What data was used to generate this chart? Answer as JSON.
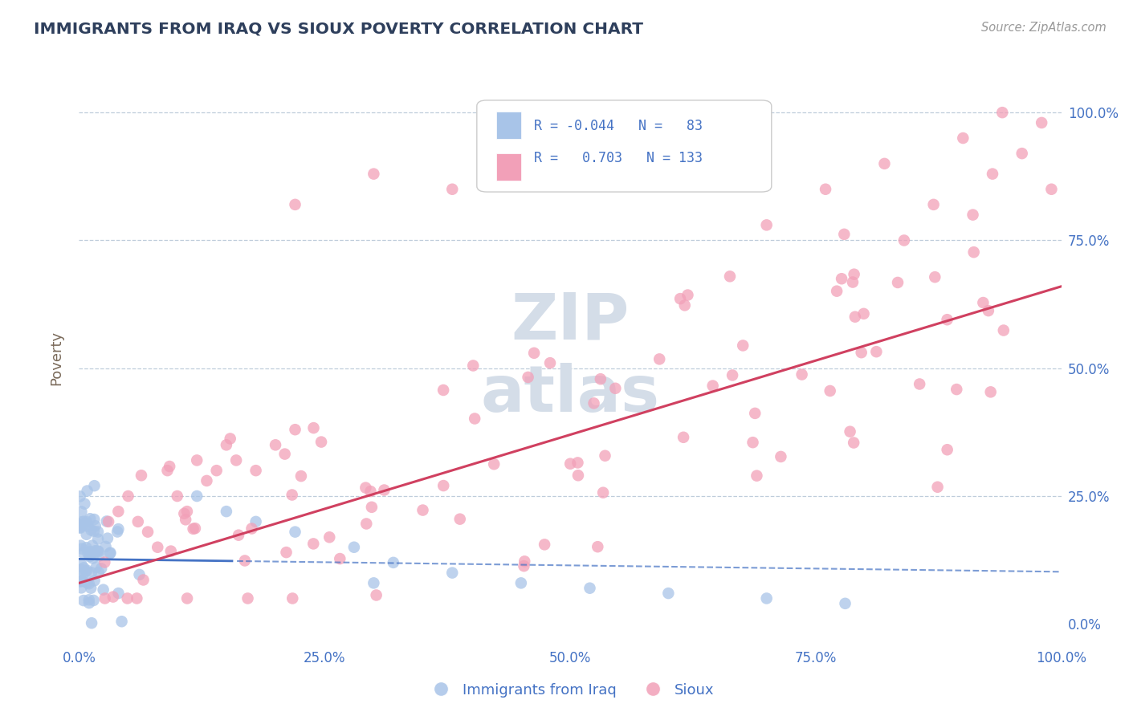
{
  "title": "IMMIGRANTS FROM IRAQ VS SIOUX POVERTY CORRELATION CHART",
  "source": "Source: ZipAtlas.com",
  "ylabel": "Poverty",
  "iraq_color": "#a8c4e8",
  "sioux_color": "#f2a0b8",
  "iraq_line_color": "#4472c4",
  "sioux_line_color": "#d04060",
  "title_color": "#2e3f5c",
  "axis_label_color": "#7a6a5a",
  "tick_color": "#4472c4",
  "grid_color": "#b8c8d8",
  "background_color": "#ffffff",
  "watermark_color": "#d4dde8"
}
